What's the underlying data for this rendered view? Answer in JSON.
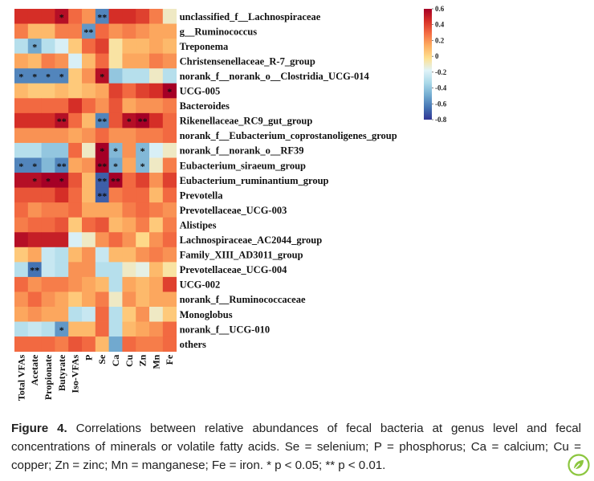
{
  "chart_data": {
    "type": "heatmap",
    "columns": [
      "Total VFAs",
      "Acetate",
      "Propionate",
      "Butyrate",
      "Iso-VFAs",
      "P",
      "Se",
      "Ca",
      "Cu",
      "Zn",
      "Mn",
      "Fe"
    ],
    "rows": [
      "unclassified_f__Lachnospiraceae",
      "g__Ruminococcus",
      "Treponema",
      "Christensenellaceae_R-7_group",
      "norank_f__norank_o__Clostridia_UCG-014",
      "UCG-005",
      "Bacteroides",
      "Rikenellaceae_RC9_gut_group",
      "norank_f__Eubacterium_coprostanoligenes_group",
      "norank_f__norank_o__RF39",
      "Eubacterium_siraeum_group",
      "Eubacterium_ruminantium_group",
      "Prevotella",
      "Prevotellaceae_UCG-003",
      "Alistipes",
      "Lachnospiraceae_AC2044_group",
      "Family_XIII_AD3011_group",
      "Prevotellaceae_UCG-004",
      "UCG-002",
      "norank_f__Ruminococcaceae",
      "Monoglobus",
      "norank_f__UCG-010",
      "others"
    ],
    "values": [
      [
        0.45,
        0.45,
        0.45,
        0.55,
        0.3,
        0.2,
        -0.6,
        0.45,
        0.45,
        0.4,
        0.25,
        -0.1
      ],
      [
        0.25,
        0.1,
        0.1,
        0.25,
        0.25,
        -0.55,
        0.3,
        0.2,
        0.25,
        0.2,
        0.15,
        0.15
      ],
      [
        -0.3,
        -0.5,
        -0.3,
        -0.2,
        0.05,
        0.3,
        0.4,
        -0.05,
        0.1,
        0.1,
        0.15,
        0.1
      ],
      [
        0.15,
        0.1,
        0.25,
        0.2,
        -0.2,
        0.1,
        0.3,
        -0.05,
        0.15,
        0.15,
        0.25,
        0.2
      ],
      [
        -0.6,
        -0.6,
        -0.6,
        -0.6,
        0.05,
        0.2,
        0.55,
        -0.4,
        -0.3,
        -0.3,
        -0.1,
        -0.3
      ],
      [
        0.1,
        0.05,
        0.05,
        0.1,
        0.05,
        0.1,
        0.15,
        0.4,
        0.3,
        0.4,
        0.45,
        0.6
      ],
      [
        0.3,
        0.3,
        0.3,
        0.3,
        0.45,
        0.3,
        0.2,
        0.35,
        0.15,
        0.2,
        0.2,
        0.25
      ],
      [
        0.45,
        0.45,
        0.45,
        0.55,
        0.3,
        0.1,
        -0.6,
        0.35,
        0.55,
        0.6,
        0.45,
        0.3
      ],
      [
        0.2,
        0.2,
        0.2,
        0.2,
        0.15,
        0.2,
        0.3,
        0.2,
        0.2,
        0.25,
        0.25,
        0.3
      ],
      [
        -0.3,
        -0.3,
        -0.4,
        -0.4,
        0.3,
        -0.1,
        0.6,
        -0.45,
        0.2,
        -0.45,
        -0.2,
        -0.1
      ],
      [
        -0.6,
        -0.6,
        -0.45,
        -0.6,
        0.15,
        0.2,
        0.65,
        -0.5,
        0.15,
        -0.45,
        -0.1,
        0.25
      ],
      [
        0.55,
        0.55,
        0.6,
        0.6,
        0.35,
        0.1,
        -0.7,
        0.65,
        0.3,
        0.4,
        0.2,
        0.4
      ],
      [
        0.35,
        0.35,
        0.35,
        0.45,
        0.3,
        0.1,
        -0.7,
        0.25,
        0.3,
        0.3,
        0.1,
        0.3
      ],
      [
        0.3,
        0.2,
        0.25,
        0.25,
        0.3,
        0.15,
        0.15,
        0.15,
        0.25,
        0.3,
        0.25,
        0.2
      ],
      [
        0.25,
        0.3,
        0.3,
        0.35,
        0.05,
        0.3,
        0.35,
        0.1,
        0.15,
        0.25,
        0.05,
        0.25
      ],
      [
        0.55,
        0.5,
        0.5,
        0.5,
        -0.2,
        -0.1,
        0.2,
        0.3,
        0.2,
        0.0,
        0.2,
        0.3
      ],
      [
        0.05,
        0.15,
        -0.25,
        -0.3,
        0.1,
        0.2,
        -0.25,
        0.1,
        0.1,
        0.2,
        0.25,
        0.2
      ],
      [
        -0.3,
        -0.65,
        -0.25,
        -0.3,
        0.2,
        0.2,
        -0.3,
        -0.3,
        -0.1,
        -0.15,
        0.1,
        -0.05
      ],
      [
        0.3,
        0.2,
        0.25,
        0.25,
        0.2,
        0.15,
        0.1,
        -0.3,
        0.15,
        0.1,
        0.15,
        0.4
      ],
      [
        0.2,
        0.3,
        0.2,
        0.15,
        0.05,
        0.15,
        0.25,
        -0.1,
        0.2,
        0.1,
        0.15,
        0.15
      ],
      [
        0.15,
        0.2,
        0.15,
        0.15,
        -0.3,
        -0.25,
        0.3,
        -0.3,
        0.05,
        0.2,
        -0.1,
        0.05
      ],
      [
        -0.3,
        -0.25,
        -0.3,
        -0.55,
        0.1,
        0.1,
        0.3,
        -0.3,
        0.1,
        0.15,
        0.2,
        0.3
      ],
      [
        0.3,
        0.3,
        0.3,
        0.25,
        0.35,
        0.3,
        0.1,
        -0.5,
        0.3,
        0.25,
        0.25,
        0.3
      ]
    ],
    "significance": [
      [
        "",
        "",
        "",
        "*",
        "",
        "",
        "**",
        "",
        "",
        "",
        "",
        ""
      ],
      [
        "",
        "",
        "",
        "",
        "",
        "**",
        "",
        "",
        "",
        "",
        "",
        ""
      ],
      [
        "",
        "*",
        "",
        "",
        "",
        "",
        "",
        "",
        "",
        "",
        "",
        ""
      ],
      [
        "",
        "",
        "",
        "",
        "",
        "",
        "",
        "",
        "",
        "",
        "",
        ""
      ],
      [
        "*",
        "*",
        "*",
        "*",
        "",
        "",
        "*",
        "",
        "",
        "",
        "",
        ""
      ],
      [
        "",
        "",
        "",
        "",
        "",
        "",
        "",
        "",
        "",
        "",
        "",
        "*"
      ],
      [
        "",
        "",
        "",
        "",
        "",
        "",
        "",
        "",
        "",
        "",
        "",
        ""
      ],
      [
        "",
        "",
        "",
        "**",
        "",
        "",
        "**",
        "",
        "*",
        "**",
        "",
        ""
      ],
      [
        "",
        "",
        "",
        "",
        "",
        "",
        "",
        "",
        "",
        "",
        "",
        ""
      ],
      [
        "",
        "",
        "",
        "",
        "",
        "",
        "*",
        "*",
        "",
        "*",
        "",
        ""
      ],
      [
        "*",
        "*",
        "",
        "**",
        "",
        "",
        "**",
        "*",
        "",
        "*",
        "",
        ""
      ],
      [
        "",
        "*",
        "*",
        "*",
        "",
        "",
        "**",
        "**",
        "",
        "",
        "",
        ""
      ],
      [
        "",
        "",
        "",
        "",
        "",
        "",
        "**",
        "",
        "",
        "",
        "",
        ""
      ],
      [
        "",
        "",
        "",
        "",
        "",
        "",
        "",
        "",
        "",
        "",
        "",
        ""
      ],
      [
        "",
        "",
        "",
        "",
        "",
        "",
        "",
        "",
        "",
        "",
        "",
        ""
      ],
      [
        "",
        "",
        "",
        "",
        "",
        "",
        "",
        "",
        "",
        "",
        "",
        ""
      ],
      [
        "",
        "",
        "",
        "",
        "",
        "",
        "",
        "",
        "",
        "",
        "",
        ""
      ],
      [
        "",
        "**",
        "",
        "",
        "",
        "",
        "",
        "",
        "",
        "",
        "",
        ""
      ],
      [
        "",
        "",
        "",
        "",
        "",
        "",
        "",
        "",
        "",
        "",
        "",
        ""
      ],
      [
        "",
        "",
        "",
        "",
        "",
        "",
        "",
        "",
        "",
        "",
        "",
        ""
      ],
      [
        "",
        "",
        "",
        "",
        "",
        "",
        "",
        "",
        "",
        "",
        "",
        ""
      ],
      [
        "",
        "",
        "",
        "*",
        "",
        "",
        "",
        "",
        "",
        "",
        "",
        ""
      ],
      [
        "",
        "",
        "",
        "",
        "",
        "",
        "",
        "",
        "",
        "",
        "",
        ""
      ]
    ],
    "color_scale": {
      "range": [
        -0.8,
        0.6
      ],
      "ticks": [
        0.6,
        0.4,
        0.2,
        0,
        -0.2,
        -0.4,
        -0.6,
        -0.8
      ],
      "stops": [
        "#313695",
        "#4575b4",
        "#74add1",
        "#abd9e9",
        "#e0f3f8",
        "#fee090",
        "#fdae61",
        "#f46d43",
        "#d73027",
        "#a50026"
      ],
      "legend_position": "top-right"
    }
  },
  "caption": {
    "label": "Figure 4.",
    "text": " Correlations between relative abundances of fecal bacteria at genus level and fecal concentrations of minerals or volatile fatty acids. Se = selenium; P = phosphorus; Ca = calcium; Cu = copper; Zn = zinc; Mn = manganese; Fe = iron. * p < 0.05; ** p < 0.01."
  },
  "badge": {
    "icon": "leaf-badge-icon",
    "color": "#8cc63f"
  }
}
